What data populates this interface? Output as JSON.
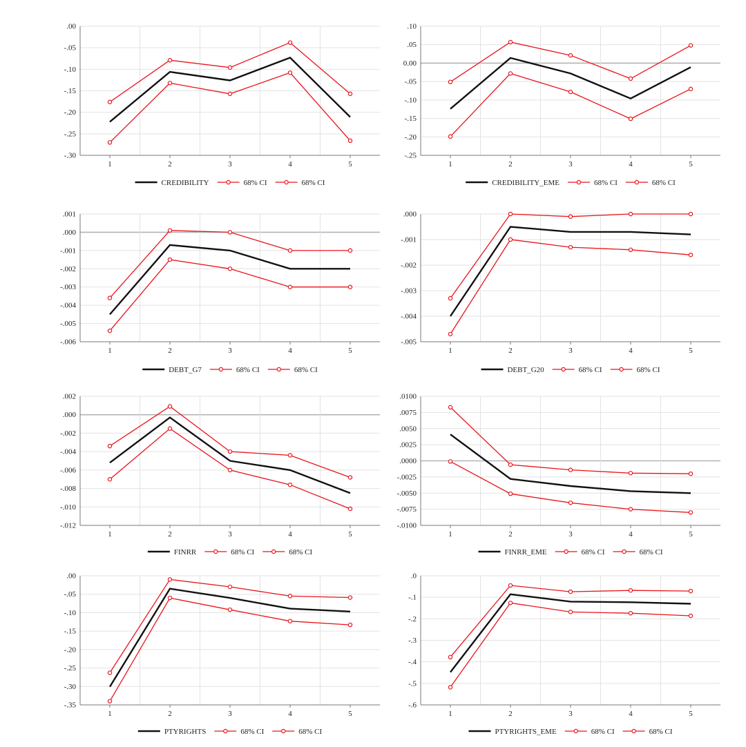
{
  "colors": {
    "estimate": "#111111",
    "ci": "#e8131a",
    "grid": "#e2e2e2",
    "zero": "#b3b3b3",
    "axis": "#777777"
  },
  "chart_data": [
    {
      "type": "line",
      "x": [
        1,
        2,
        3,
        4,
        5
      ],
      "ylim": [
        -0.3,
        0.0
      ],
      "yticks": [
        ".00",
        "-.05",
        "-.10",
        "-.15",
        "-.20",
        "-.25",
        "-.30"
      ],
      "ytick_values": [
        0.0,
        -0.05,
        -0.1,
        -0.15,
        -0.2,
        -0.25,
        -0.3
      ],
      "xticks": [
        "1",
        "2",
        "3",
        "4",
        "5"
      ],
      "zero_line": false,
      "series": [
        {
          "name": "CREDIBILITY",
          "role": "estimate",
          "values": [
            -0.222,
            -0.106,
            -0.126,
            -0.073,
            -0.211
          ]
        },
        {
          "name": "68% CI",
          "role": "ci",
          "values": [
            -0.176,
            -0.079,
            -0.096,
            -0.038,
            -0.157
          ]
        },
        {
          "name": "68% CI",
          "role": "ci",
          "values": [
            -0.27,
            -0.132,
            -0.157,
            -0.108,
            -0.266
          ]
        }
      ]
    },
    {
      "type": "line",
      "x": [
        1,
        2,
        3,
        4,
        5
      ],
      "ylim": [
        -0.25,
        0.1
      ],
      "yticks": [
        ".10",
        ".05",
        "0.00",
        "-.05",
        "-.10",
        "-.15",
        "-.20",
        "-.25"
      ],
      "ytick_values": [
        0.1,
        0.05,
        0.0,
        -0.05,
        -0.1,
        -0.15,
        -0.2,
        -0.25
      ],
      "xticks": [
        "1",
        "2",
        "3",
        "4",
        "5"
      ],
      "zero_line": true,
      "series": [
        {
          "name": "CREDIBILITY_EME",
          "role": "estimate",
          "values": [
            -0.124,
            0.014,
            -0.028,
            -0.096,
            -0.011
          ]
        },
        {
          "name": "68% CI",
          "role": "ci",
          "values": [
            -0.051,
            0.057,
            0.021,
            -0.042,
            0.048
          ]
        },
        {
          "name": "68% CI",
          "role": "ci",
          "values": [
            -0.199,
            -0.028,
            -0.078,
            -0.151,
            -0.07
          ]
        }
      ]
    },
    {
      "type": "line",
      "x": [
        1,
        2,
        3,
        4,
        5
      ],
      "ylim": [
        -0.006,
        0.001
      ],
      "yticks": [
        ".001",
        ".000",
        "-.001",
        "-.002",
        "-.003",
        "-.004",
        "-.005",
        "-.006"
      ],
      "ytick_values": [
        0.001,
        0.0,
        -0.001,
        -0.002,
        -0.003,
        -0.004,
        -0.005,
        -0.006
      ],
      "xticks": [
        "1",
        "2",
        "3",
        "4",
        "5"
      ],
      "zero_line": true,
      "series": [
        {
          "name": "DEBT_G7",
          "role": "estimate",
          "values": [
            -0.0045,
            -0.0007,
            -0.001,
            -0.002,
            -0.002
          ]
        },
        {
          "name": "68% CI",
          "role": "ci",
          "values": [
            -0.0036,
            0.0001,
            0.0,
            -0.001,
            -0.001
          ]
        },
        {
          "name": "68% CI",
          "role": "ci",
          "values": [
            -0.0054,
            -0.0015,
            -0.002,
            -0.003,
            -0.003
          ]
        }
      ]
    },
    {
      "type": "line",
      "x": [
        1,
        2,
        3,
        4,
        5
      ],
      "ylim": [
        -0.005,
        0.0
      ],
      "yticks": [
        ".000",
        "-.001",
        "-.002",
        "-.003",
        "-.004",
        "-.005"
      ],
      "ytick_values": [
        0.0,
        -0.001,
        -0.002,
        -0.003,
        -0.004,
        -0.005
      ],
      "xticks": [
        "1",
        "2",
        "3",
        "4",
        "5"
      ],
      "zero_line": false,
      "series": [
        {
          "name": "DEBT_G20",
          "role": "estimate",
          "values": [
            -0.004,
            -0.0005,
            -0.0007,
            -0.0007,
            -0.0008
          ]
        },
        {
          "name": "68% CI",
          "role": "ci",
          "values": [
            -0.0033,
            0.0,
            -0.0001,
            0.0,
            0.0
          ]
        },
        {
          "name": "68% CI",
          "role": "ci",
          "values": [
            -0.0047,
            -0.001,
            -0.0013,
            -0.0014,
            -0.0016
          ]
        }
      ]
    },
    {
      "type": "line",
      "x": [
        1,
        2,
        3,
        4,
        5
      ],
      "ylim": [
        -0.012,
        0.002
      ],
      "yticks": [
        ".002",
        ".000",
        "-.002",
        "-.004",
        "-.006",
        "-.008",
        "-.010",
        "-.012"
      ],
      "ytick_values": [
        0.002,
        0.0,
        -0.002,
        -0.004,
        -0.006,
        -0.008,
        -0.01,
        -0.012
      ],
      "xticks": [
        "1",
        "2",
        "3",
        "4",
        "5"
      ],
      "zero_line": true,
      "series": [
        {
          "name": "FINRR",
          "role": "estimate",
          "values": [
            -0.0052,
            -0.0003,
            -0.005,
            -0.006,
            -0.0085
          ]
        },
        {
          "name": "68% CI",
          "role": "ci",
          "values": [
            -0.0034,
            0.0009,
            -0.004,
            -0.0044,
            -0.0068
          ]
        },
        {
          "name": "68% CI",
          "role": "ci",
          "values": [
            -0.007,
            -0.0015,
            -0.006,
            -0.0076,
            -0.0102
          ]
        }
      ]
    },
    {
      "type": "line",
      "x": [
        1,
        2,
        3,
        4,
        5
      ],
      "ylim": [
        -0.01,
        0.01
      ],
      "yticks": [
        ".0100",
        ".0075",
        ".0050",
        ".0025",
        ".0000",
        "-.0025",
        "-.0050",
        "-.0075",
        "-.0100"
      ],
      "ytick_values": [
        0.01,
        0.0075,
        0.005,
        0.0025,
        0.0,
        -0.0025,
        -0.005,
        -0.0075,
        -0.01
      ],
      "xticks": [
        "1",
        "2",
        "3",
        "4",
        "5"
      ],
      "zero_line": true,
      "series": [
        {
          "name": "FINRR_EME",
          "role": "estimate",
          "values": [
            0.0041,
            -0.0028,
            -0.0039,
            -0.0047,
            -0.005
          ]
        },
        {
          "name": "68% CI",
          "role": "ci",
          "values": [
            0.0083,
            -0.0006,
            -0.0014,
            -0.0019,
            -0.002
          ]
        },
        {
          "name": "68% CI",
          "role": "ci",
          "values": [
            -0.0001,
            -0.0051,
            -0.0065,
            -0.0075,
            -0.008
          ]
        }
      ]
    },
    {
      "type": "line",
      "x": [
        1,
        2,
        3,
        4,
        5
      ],
      "ylim": [
        -0.35,
        0.0
      ],
      "yticks": [
        ".00",
        "-.05",
        "-.10",
        "-.15",
        "-.20",
        "-.25",
        "-.30",
        "-.35"
      ],
      "ytick_values": [
        0.0,
        -0.05,
        -0.1,
        -0.15,
        -0.2,
        -0.25,
        -0.3,
        -0.35
      ],
      "xticks": [
        "1",
        "2",
        "3",
        "4",
        "5"
      ],
      "zero_line": false,
      "series": [
        {
          "name": "PTYRIGHTS",
          "role": "estimate",
          "values": [
            -0.301,
            -0.035,
            -0.06,
            -0.089,
            -0.097
          ]
        },
        {
          "name": "68% CI",
          "role": "ci",
          "values": [
            -0.263,
            -0.01,
            -0.03,
            -0.055,
            -0.059
          ]
        },
        {
          "name": "68% CI",
          "role": "ci",
          "values": [
            -0.34,
            -0.06,
            -0.092,
            -0.123,
            -0.133
          ]
        }
      ]
    },
    {
      "type": "line",
      "x": [
        1,
        2,
        3,
        4,
        5
      ],
      "ylim": [
        -0.6,
        0.0
      ],
      "yticks": [
        ".0",
        "-.1",
        "-.2",
        "-.3",
        "-.4",
        "-.5",
        "-.6"
      ],
      "ytick_values": [
        0.0,
        -0.1,
        -0.2,
        -0.3,
        -0.4,
        -0.5,
        -0.6
      ],
      "xticks": [
        "1",
        "2",
        "3",
        "4",
        "5"
      ],
      "zero_line": false,
      "series": [
        {
          "name": "PTYRIGHTS_EME",
          "role": "estimate",
          "values": [
            -0.448,
            -0.086,
            -0.12,
            -0.123,
            -0.13
          ]
        },
        {
          "name": "68% CI",
          "role": "ci",
          "values": [
            -0.378,
            -0.045,
            -0.074,
            -0.068,
            -0.071
          ]
        },
        {
          "name": "68% CI",
          "role": "ci",
          "values": [
            -0.518,
            -0.126,
            -0.168,
            -0.174,
            -0.186
          ]
        }
      ]
    }
  ]
}
